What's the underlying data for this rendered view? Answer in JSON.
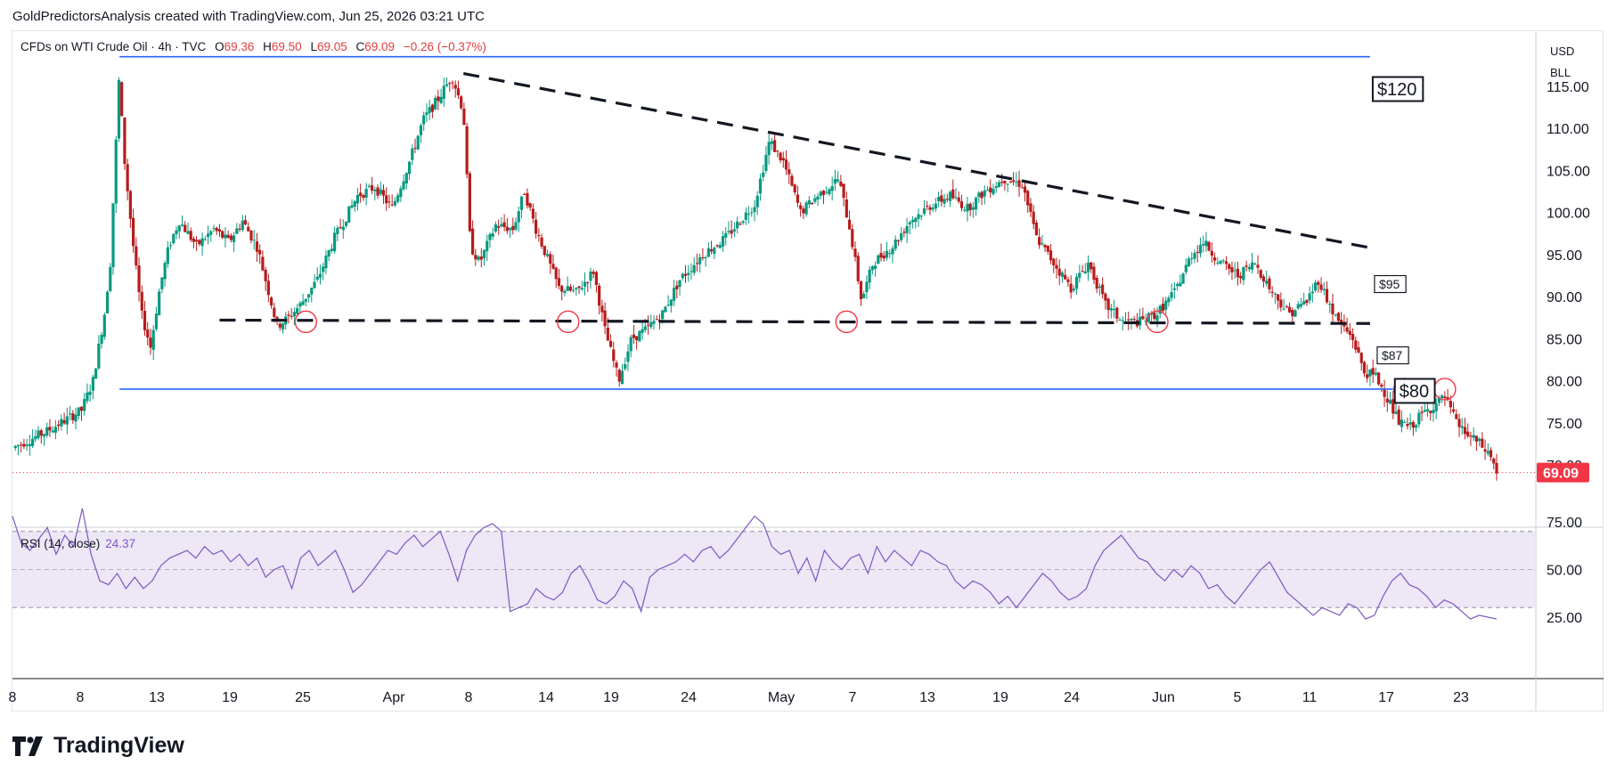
{
  "header": {
    "attribution": "GoldPredictorsAnalysis created with TradingView.com, Jun 25, 2026 03:21 UTC"
  },
  "legend": {
    "symbol": "CFDs on WTI Crude Oil · 4h · TVC",
    "open_label": "O",
    "open": "69.36",
    "high_label": "H",
    "high": "69.50",
    "low_label": "L",
    "low": "69.05",
    "close_label": "C",
    "close": "69.09",
    "change": "−0.26 (−0.37%)"
  },
  "units": {
    "currency": "USD",
    "unit": "BLL"
  },
  "last_price": "69.09",
  "rsi_legend": {
    "name": "RSI (14, close)",
    "value": "24.37"
  },
  "brand": {
    "name": "TradingView"
  },
  "colors": {
    "up": "#089981",
    "down": "#b71c1c",
    "level": "#2962ff",
    "rsi": "#7e57c2",
    "rsi_band": "#ede7f6",
    "last": "#f23645"
  },
  "chart_data": [
    {
      "type": "candlestick",
      "title": "",
      "ylim": [
        68,
        120
      ],
      "y_ticks": [
        "115.00",
        "110.00",
        "105.00",
        "100.00",
        "95.00",
        "90.00",
        "85.00",
        "80.00",
        "75.00",
        "70.00"
      ],
      "x_ticks": [
        "8",
        "8",
        "13",
        "19",
        "25",
        "Apr",
        "8",
        "14",
        "19",
        "24",
        "May",
        "7",
        "13",
        "19",
        "24",
        "Jun",
        "5",
        "11",
        "17",
        "23"
      ],
      "price_path": [
        [
          0,
          72
        ],
        [
          3,
          74
        ],
        [
          6,
          76.5
        ],
        [
          7,
          80
        ],
        [
          8,
          88
        ],
        [
          8.5,
          94
        ],
        [
          9.3,
          117
        ],
        [
          9.6,
          108
        ],
        [
          10.5,
          96
        ],
        [
          11.2,
          88
        ],
        [
          12,
          84
        ],
        [
          12.8,
          91
        ],
        [
          13.6,
          96
        ],
        [
          14.5,
          99
        ],
        [
          16,
          96
        ],
        [
          17.5,
          98
        ],
        [
          18.8,
          96.5
        ],
        [
          20,
          99
        ],
        [
          21.3,
          95.8
        ],
        [
          23,
          86.5
        ],
        [
          24,
          87.5
        ],
        [
          25,
          89
        ],
        [
          26.5,
          92
        ],
        [
          28,
          97
        ],
        [
          30,
          102
        ],
        [
          31.5,
          103
        ],
        [
          33,
          100.5
        ],
        [
          34.5,
          106
        ],
        [
          35.7,
          111
        ],
        [
          37,
          113.5
        ],
        [
          38.2,
          116.2
        ],
        [
          39.2,
          112
        ],
        [
          39.8,
          96
        ],
        [
          40.6,
          94
        ],
        [
          42,
          98.5
        ],
        [
          43.5,
          98
        ],
        [
          44.5,
          102.5
        ],
        [
          45.5,
          98
        ],
        [
          47.5,
          91
        ],
        [
          49,
          90.5
        ],
        [
          50.5,
          93
        ],
        [
          51.5,
          86
        ],
        [
          52.7,
          80
        ],
        [
          53.8,
          85
        ],
        [
          55,
          86
        ],
        [
          56.5,
          88
        ],
        [
          58,
          92
        ],
        [
          60,
          95
        ],
        [
          62,
          97
        ],
        [
          64.5,
          101
        ],
        [
          65.8,
          108.5
        ],
        [
          67,
          106
        ],
        [
          68.5,
          100
        ],
        [
          70,
          102
        ],
        [
          71.8,
          104
        ],
        [
          72.8,
          98
        ],
        [
          73.8,
          89.5
        ],
        [
          74.8,
          94
        ],
        [
          76.5,
          96
        ],
        [
          78,
          99
        ],
        [
          80,
          101
        ],
        [
          81.5,
          102
        ],
        [
          83,
          100.5
        ],
        [
          84.5,
          102.5
        ],
        [
          86.2,
          104
        ],
        [
          87.8,
          103.3
        ],
        [
          89,
          97
        ],
        [
          90.5,
          94
        ],
        [
          92,
          91
        ],
        [
          93.5,
          94
        ],
        [
          95,
          89
        ],
        [
          96.5,
          87
        ],
        [
          98,
          87
        ],
        [
          99.5,
          88
        ],
        [
          101,
          90.5
        ],
        [
          102.5,
          95
        ],
        [
          103.5,
          96.5
        ],
        [
          105,
          94
        ],
        [
          106.5,
          92.5
        ],
        [
          108,
          94
        ],
        [
          109.5,
          90.5
        ],
        [
          111,
          88
        ],
        [
          112.5,
          89.5
        ],
        [
          113.5,
          92
        ],
        [
          115,
          87.5
        ],
        [
          116.5,
          85
        ],
        [
          117.5,
          81
        ],
        [
          118.5,
          80.5
        ],
        [
          119.5,
          78
        ],
        [
          120.5,
          75
        ],
        [
          121.5,
          74.5
        ],
        [
          122.5,
          76
        ],
        [
          123.5,
          77
        ],
        [
          124.5,
          78
        ],
        [
          125.5,
          75
        ],
        [
          126.5,
          73.5
        ],
        [
          127.5,
          72.5
        ],
        [
          128.5,
          71
        ],
        [
          129,
          69.1
        ]
      ],
      "levels": [
        {
          "label": "$120",
          "price": 118.5
        },
        {
          "label": "$80",
          "price": 79
        },
        {
          "label": "$87",
          "from": [
            18,
            87.2
          ],
          "to": [
            118,
            86.8
          ]
        },
        {
          "label": "$95",
          "from": [
            39.2,
            116.5
          ],
          "to": [
            118,
            95.8
          ]
        }
      ],
      "touch_points": [
        [
          25.5,
          87
        ],
        [
          48.3,
          87
        ],
        [
          72.5,
          87
        ],
        [
          99.5,
          87
        ],
        [
          121,
          79
        ],
        [
          124.5,
          79
        ]
      ],
      "last": 69.09
    },
    {
      "type": "line",
      "title": "",
      "series": [
        {
          "name": "RSI (14, close)",
          "values": [
            78,
            64,
            60,
            66,
            72,
            58,
            68,
            62,
            82,
            58,
            44,
            42,
            48,
            40,
            46,
            40,
            44,
            52,
            56,
            58,
            60,
            56,
            62,
            58,
            60,
            54,
            58,
            52,
            56,
            46,
            50,
            52,
            40,
            56,
            60,
            52,
            56,
            60,
            50,
            38,
            42,
            48,
            54,
            60,
            58,
            64,
            68,
            62,
            66,
            70,
            58,
            44,
            60,
            68,
            72,
            74,
            70,
            28,
            30,
            32,
            40,
            36,
            34,
            38,
            48,
            52,
            44,
            34,
            32,
            36,
            44,
            40,
            28,
            46,
            50,
            52,
            54,
            58,
            54,
            60,
            62,
            56,
            60,
            66,
            72,
            78,
            74,
            62,
            58,
            60,
            48,
            56,
            44,
            60,
            54,
            50,
            56,
            58,
            48,
            62,
            54,
            60,
            56,
            52,
            60,
            58,
            54,
            52,
            44,
            40,
            44,
            42,
            38,
            32,
            36,
            30,
            36,
            42,
            48,
            44,
            38,
            34,
            36,
            40,
            52,
            60,
            64,
            68,
            62,
            56,
            54,
            48,
            44,
            50,
            46,
            52,
            48,
            40,
            42,
            36,
            32,
            38,
            44,
            50,
            54,
            46,
            38,
            34,
            30,
            26,
            30,
            28,
            26,
            32,
            30,
            24,
            26,
            36,
            44,
            48,
            42,
            40,
            36,
            30,
            34,
            32,
            28,
            24,
            26,
            25,
            24
          ]
        }
      ],
      "ylim": [
        18,
        92
      ],
      "y_ticks": [
        "75.00",
        "50.00",
        "25.00"
      ],
      "bands": [
        30,
        50,
        70
      ]
    }
  ]
}
